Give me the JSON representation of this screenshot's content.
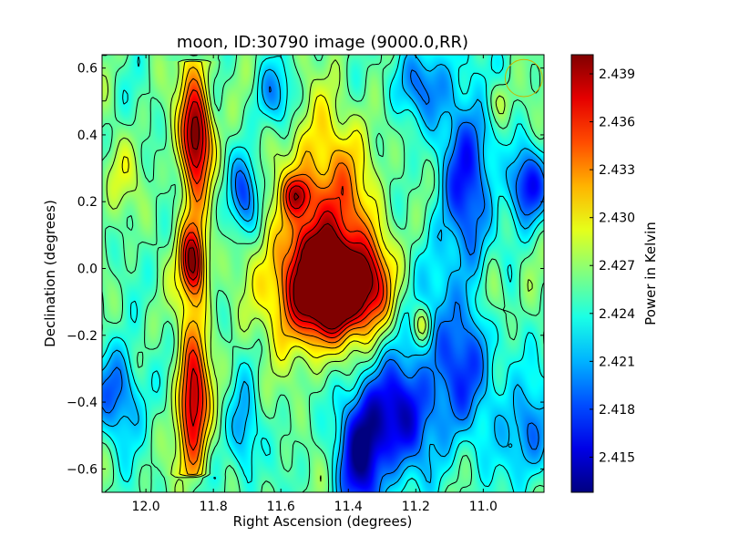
{
  "chart_data": {
    "type": "heatmap",
    "title": "moon, ID:30790 image (9000.0,RR)",
    "xlabel": "Right Ascension (degrees)",
    "ylabel": "Declination (degrees)",
    "colorbar_label": "Power in Kelvin",
    "colormap": "jet",
    "grid": false,
    "legend": "none",
    "x_reversed": true,
    "xlim": [
      12.13,
      10.82
    ],
    "ylim": [
      -0.67,
      0.64
    ],
    "clim": [
      2.4128,
      2.4402
    ],
    "xticks": [
      12.0,
      11.8,
      11.6,
      11.4,
      11.2,
      11.0
    ],
    "xtick_labels": [
      "12.0",
      "11.8",
      "11.6",
      "11.4",
      "11.2",
      "11.0"
    ],
    "yticks": [
      -0.6,
      -0.4,
      -0.2,
      0.0,
      0.2,
      0.4,
      0.6
    ],
    "ytick_labels": [
      "−0.6",
      "−0.4",
      "−0.2",
      "0.0",
      "0.2",
      "0.4",
      "0.6"
    ],
    "colorbar_ticks": [
      2.415,
      2.418,
      2.421,
      2.424,
      2.427,
      2.43,
      2.433,
      2.436,
      2.439
    ],
    "colorbar_tick_labels": [
      "2.415",
      "2.418",
      "2.421",
      "2.424",
      "2.427",
      "2.430",
      "2.433",
      "2.436",
      "2.439"
    ],
    "features": [
      {
        "kind": "ridge",
        "x": 11.86,
        "y0": -0.62,
        "y1": 0.62,
        "value": 2.4335,
        "sigma": 0.035
      },
      {
        "kind": "blob",
        "x": 11.85,
        "y": 0.4,
        "value": 2.4375,
        "sigma_x": 0.03,
        "sigma_y": 0.1
      },
      {
        "kind": "blob",
        "x": 11.86,
        "y": 0.02,
        "value": 2.437,
        "sigma_x": 0.025,
        "sigma_y": 0.07
      },
      {
        "kind": "blob",
        "x": 11.86,
        "y": -0.4,
        "value": 2.435,
        "sigma_x": 0.03,
        "sigma_y": 0.12
      },
      {
        "kind": "blob",
        "x": 11.49,
        "y": -0.06,
        "value": 2.44,
        "sigma_x": 0.1,
        "sigma_y": 0.12
      },
      {
        "kind": "blob",
        "x": 11.43,
        "y": -0.06,
        "value": 2.4395,
        "sigma_x": 0.05,
        "sigma_y": 0.07
      },
      {
        "kind": "blob",
        "x": 11.46,
        "y": 0.18,
        "value": 2.4345,
        "sigma_x": 0.09,
        "sigma_y": 0.2
      },
      {
        "kind": "blob",
        "x": 11.33,
        "y": -0.05,
        "value": 2.433,
        "sigma_x": 0.04,
        "sigma_y": 0.1
      },
      {
        "kind": "blob",
        "x": 11.55,
        "y": 0.22,
        "value": 2.433,
        "sigma_x": 0.03,
        "sigma_y": 0.04
      },
      {
        "kind": "blob",
        "x": 11.36,
        "y": -0.55,
        "value": 2.414,
        "sigma_x": 0.05,
        "sigma_y": 0.15
      },
      {
        "kind": "blob",
        "x": 11.25,
        "y": -0.45,
        "value": 2.4165,
        "sigma_x": 0.06,
        "sigma_y": 0.12
      },
      {
        "kind": "blob",
        "x": 11.08,
        "y": -0.3,
        "value": 2.4185,
        "sigma_x": 0.1,
        "sigma_y": 0.18
      },
      {
        "kind": "blob",
        "x": 11.05,
        "y": 0.28,
        "value": 2.4175,
        "sigma_x": 0.06,
        "sigma_y": 0.22
      },
      {
        "kind": "blob",
        "x": 11.2,
        "y": 0.55,
        "value": 2.42,
        "sigma_x": 0.06,
        "sigma_y": 0.08
      },
      {
        "kind": "blob",
        "x": 10.87,
        "y": 0.25,
        "value": 2.4165,
        "sigma_x": 0.04,
        "sigma_y": 0.08
      },
      {
        "kind": "blob",
        "x": 10.86,
        "y": -0.5,
        "value": 2.4195,
        "sigma_x": 0.05,
        "sigma_y": 0.1
      },
      {
        "kind": "blob",
        "x": 11.71,
        "y": 0.22,
        "value": 2.4185,
        "sigma_x": 0.03,
        "sigma_y": 0.08
      },
      {
        "kind": "blob",
        "x": 12.08,
        "y": -0.38,
        "value": 2.4185,
        "sigma_x": 0.05,
        "sigma_y": 0.1
      },
      {
        "kind": "blob",
        "x": 11.62,
        "y": 0.52,
        "value": 2.4205,
        "sigma_x": 0.04,
        "sigma_y": 0.07
      },
      {
        "kind": "blob",
        "x": 11.71,
        "y": -0.5,
        "value": 2.42,
        "sigma_x": 0.03,
        "sigma_y": 0.1
      },
      {
        "kind": "blob",
        "x": 11.18,
        "y": -0.17,
        "value": 2.431,
        "sigma_x": 0.02,
        "sigma_y": 0.04
      },
      {
        "kind": "blob",
        "x": 10.97,
        "y": -0.08,
        "value": 2.4305,
        "sigma_x": 0.03,
        "sigma_y": 0.08
      },
      {
        "kind": "blob",
        "x": 10.96,
        "y": 0.5,
        "value": 2.4295,
        "sigma_x": 0.03,
        "sigma_y": 0.05
      },
      {
        "kind": "blob",
        "x": 12.08,
        "y": 0.28,
        "value": 2.4285,
        "sigma_x": 0.04,
        "sigma_y": 0.08
      }
    ],
    "contour_levels": [
      2.4195,
      2.4215,
      2.4235,
      2.4255,
      2.4275,
      2.4295,
      2.4315,
      2.4335,
      2.4355,
      2.4375,
      2.4395
    ],
    "marker": {
      "shape": "circle",
      "x": 10.88,
      "y": 0.57,
      "radius_deg": 0.055,
      "color": "#c8b400"
    },
    "marker_point": {
      "x": 10.92,
      "y": -0.53
    }
  }
}
